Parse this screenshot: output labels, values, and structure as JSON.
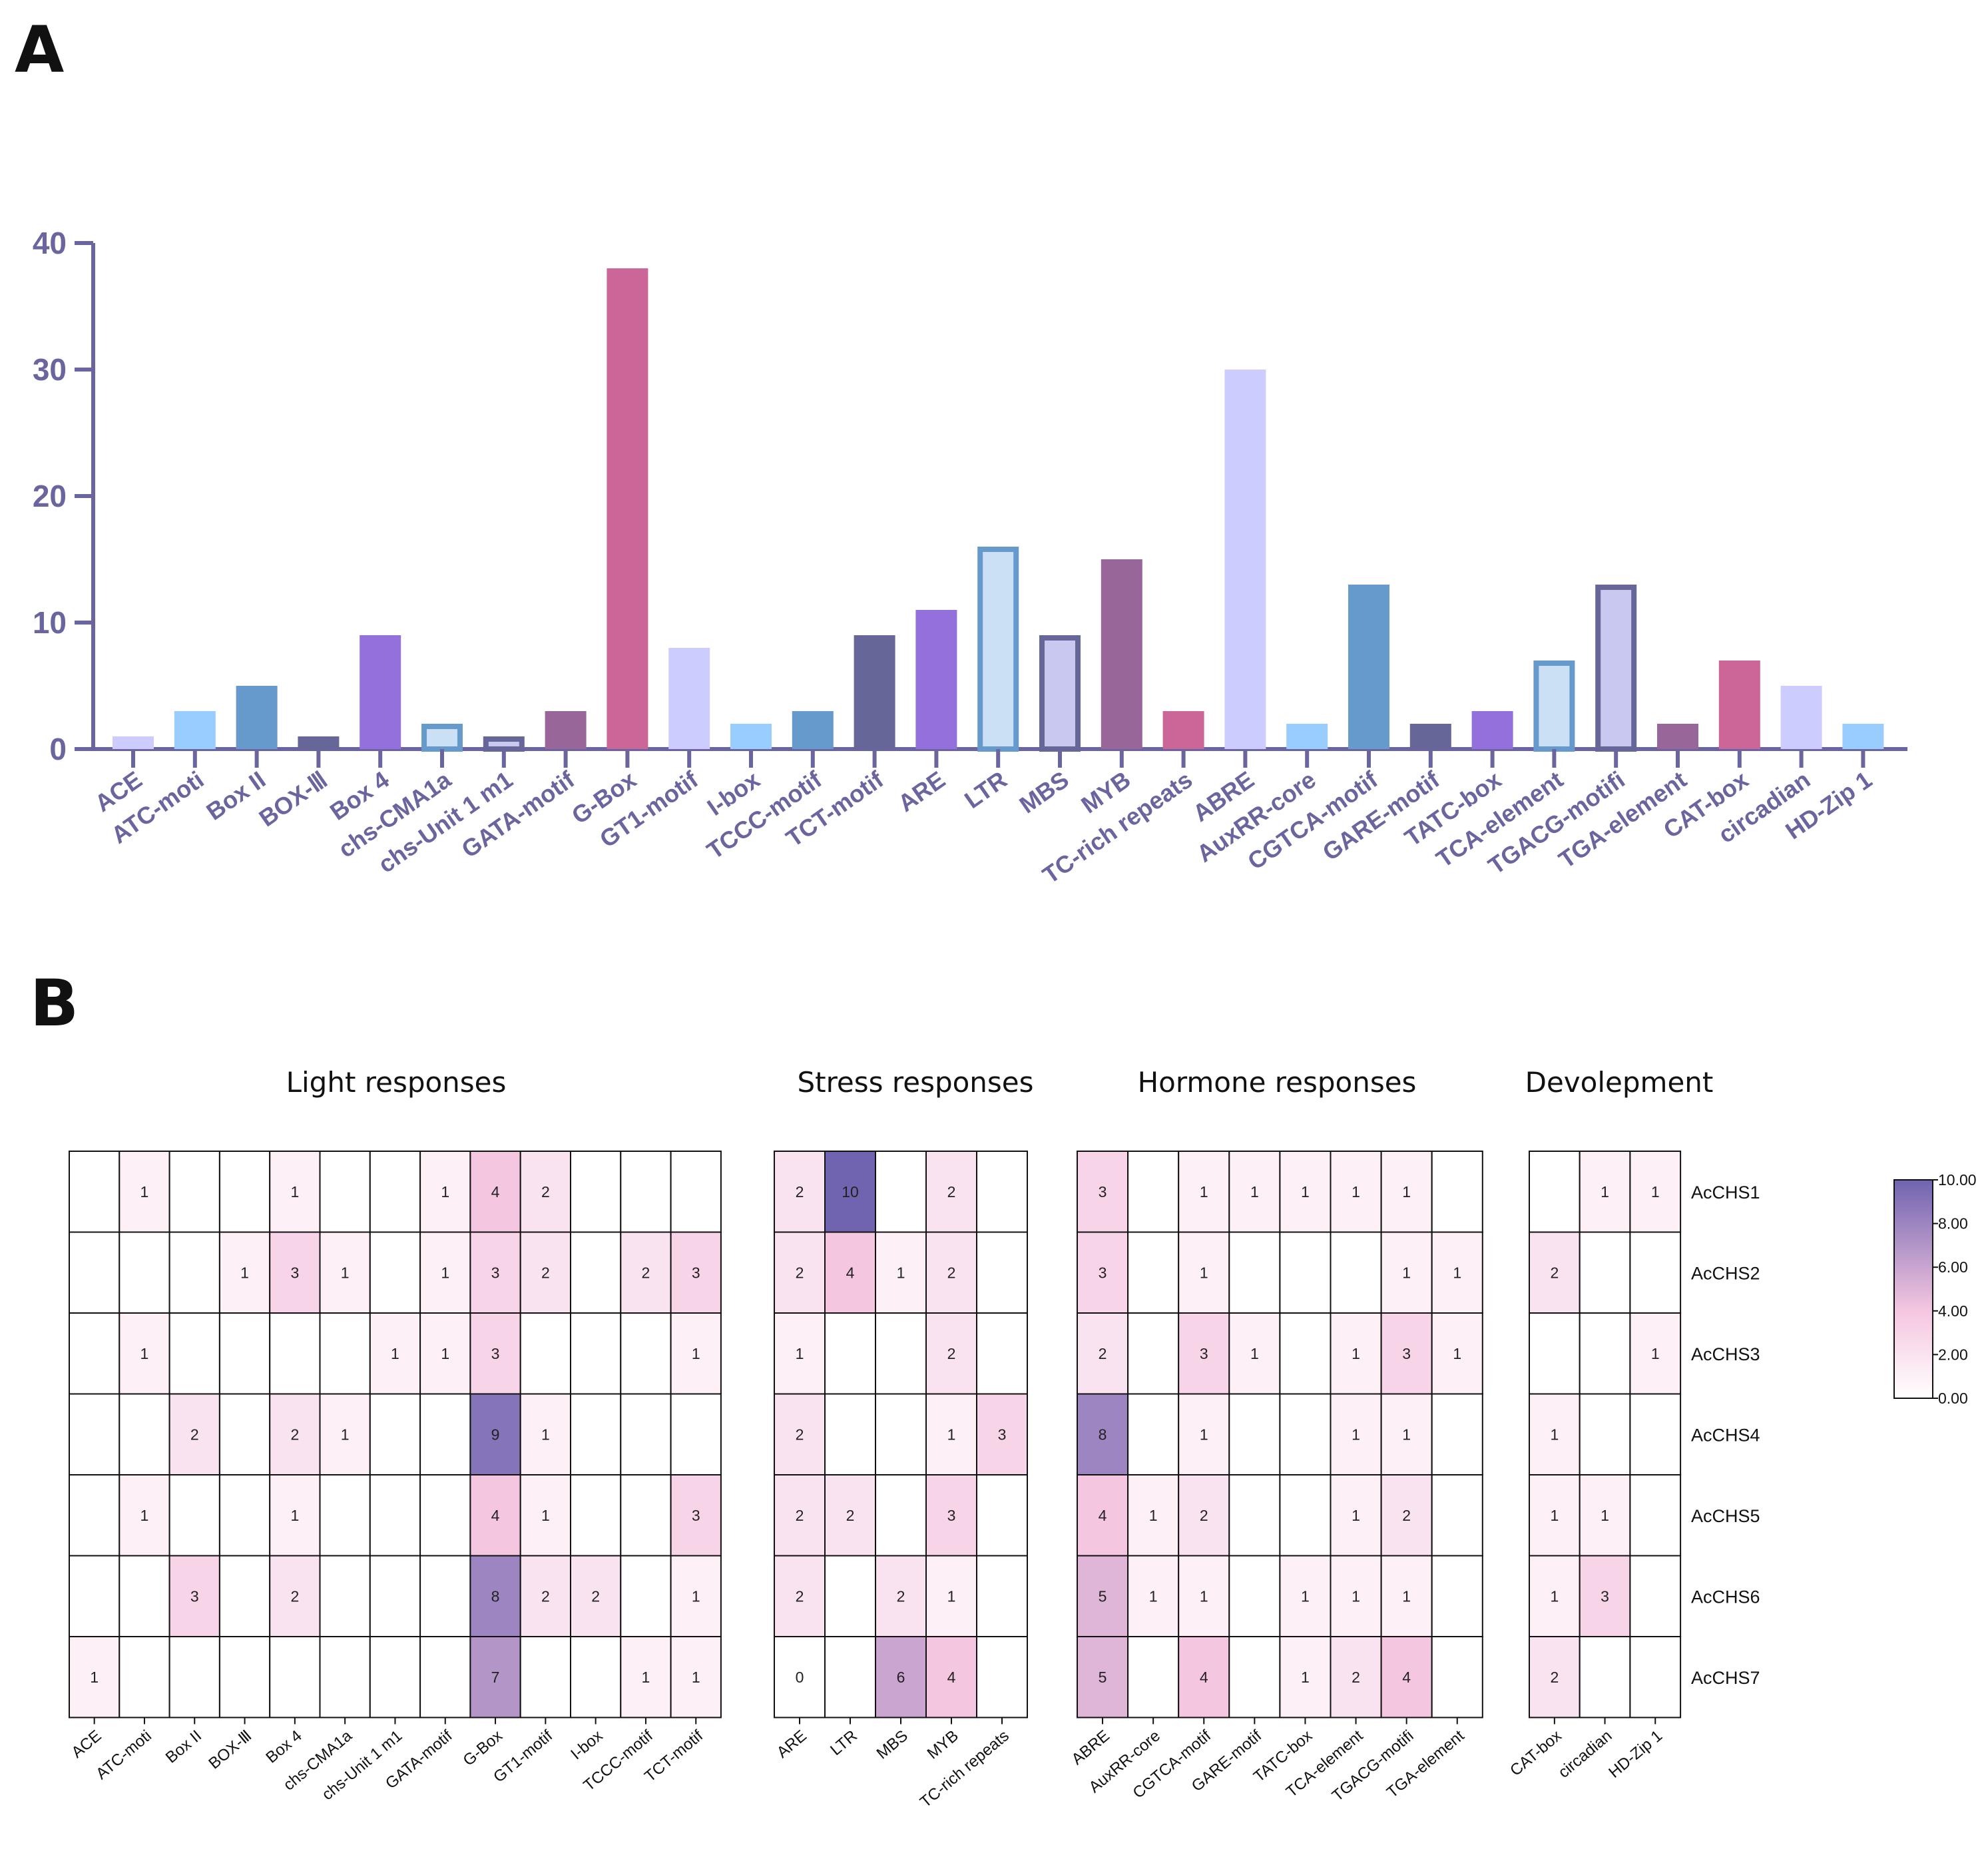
{
  "panels": {
    "a": "A",
    "b": "B"
  },
  "colors": {
    "axis": "#6A659E"
  },
  "chart_data": [
    {
      "type": "bar",
      "panel": "A",
      "title": "",
      "xlabel": "",
      "ylabel": "",
      "ylim": [
        0,
        40
      ],
      "yticks": [
        "0",
        "10",
        "20",
        "30",
        "40"
      ],
      "categories": [
        "ACE",
        "ATC-moti",
        "Box II",
        "BOX-Ⅲ",
        "Box 4",
        "chs-CMA1a",
        "chs-Unit 1 m1",
        "GATA-motif",
        "G-Box",
        "GT1-motif",
        "I-box",
        "TCCC-motif",
        "TCT-motif",
        "ARE",
        "LTR",
        "MBS",
        "MYB",
        "TC-rich repeats",
        "ABRE",
        "AuxRR-core",
        "CGTCA-motif",
        "GARE-motif",
        "TATC-box",
        "TCA-element",
        "TGACG-motifi",
        "TGA-element",
        "CAT-box",
        "circadian",
        "HD-Zip 1"
      ],
      "values": [
        1,
        3,
        5,
        1,
        9,
        2,
        1,
        3,
        38,
        8,
        2,
        3,
        9,
        11,
        16,
        9,
        15,
        3,
        30,
        2,
        13,
        2,
        3,
        7,
        13,
        2,
        7,
        5,
        2
      ],
      "bar_colors": [
        "#CCCCFF",
        "#99CCFF",
        "#6699CC",
        "#666699",
        "#9370DB",
        "#CCE0F5",
        "#C8C8F0",
        "#996699",
        "#CC6699",
        "#CCCCFF",
        "#99CCFF",
        "#6699CC",
        "#666699",
        "#9370DB",
        "#CCE0F5",
        "#C8C8F0",
        "#996699",
        "#CC6699",
        "#CCCCFF",
        "#99CCFF",
        "#6699CC",
        "#666699",
        "#9370DB",
        "#CCE0F5",
        "#C8C8F0",
        "#996699",
        "#CC6699",
        "#CCCCFF",
        "#99CCFF"
      ],
      "bar_outlines": [
        "",
        "",
        "",
        "",
        "",
        "#6699CC",
        "#666699",
        "",
        "",
        "",
        "",
        "",
        "",
        "",
        "#6699CC",
        "#666699",
        "",
        "",
        "",
        "",
        "",
        "",
        "",
        "#6699CC",
        "#666699",
        "",
        "",
        "",
        ""
      ]
    },
    {
      "type": "heatmap",
      "panel": "B",
      "rows": [
        "AcCHS1",
        "AcCHS2",
        "AcCHS3",
        "AcCHS4",
        "AcCHS5",
        "AcCHS6",
        "AcCHS7"
      ],
      "color_scale": {
        "min": 0,
        "max": 10,
        "colors": [
          "#FFFFFF",
          "#F5C6E0",
          "#7064B0"
        ],
        "ticks": [
          "10.00",
          "8.00",
          "6.00",
          "4.00",
          "2.00",
          "0.00"
        ]
      },
      "groups": [
        {
          "title": "Light responses",
          "columns": [
            "ACE",
            "ATC-moti",
            "Box II",
            "BOX-Ⅲ",
            "Box 4",
            "chs-CMA1a",
            "chs-Unit 1 m1",
            "GATA-motif",
            "G-Box",
            "GT1-motif",
            "I-box",
            "TCCC-motif",
            "TCT-motif"
          ],
          "values": [
            [
              null,
              1,
              null,
              null,
              1,
              null,
              null,
              1,
              4,
              2,
              null,
              null,
              null
            ],
            [
              null,
              null,
              null,
              1,
              3,
              1,
              null,
              1,
              3,
              2,
              null,
              2,
              3
            ],
            [
              null,
              1,
              null,
              null,
              null,
              null,
              1,
              1,
              3,
              null,
              null,
              null,
              1
            ],
            [
              null,
              null,
              2,
              null,
              2,
              1,
              null,
              null,
              9,
              1,
              null,
              null,
              null
            ],
            [
              null,
              1,
              null,
              null,
              1,
              null,
              null,
              null,
              4,
              1,
              null,
              null,
              3
            ],
            [
              null,
              null,
              3,
              null,
              2,
              null,
              null,
              null,
              8,
              2,
              2,
              null,
              1
            ],
            [
              1,
              null,
              null,
              null,
              null,
              null,
              null,
              null,
              7,
              null,
              null,
              1,
              1
            ]
          ]
        },
        {
          "title": "Stress responses",
          "columns": [
            "ARE",
            "LTR",
            "MBS",
            "MYB",
            "TC-rich repeats"
          ],
          "values": [
            [
              2,
              10,
              null,
              2,
              null
            ],
            [
              2,
              4,
              1,
              2,
              null
            ],
            [
              1,
              null,
              null,
              2,
              null
            ],
            [
              2,
              null,
              null,
              1,
              3
            ],
            [
              2,
              2,
              null,
              3,
              null
            ],
            [
              2,
              null,
              2,
              1,
              null
            ],
            [
              0,
              null,
              6,
              4,
              null
            ]
          ]
        },
        {
          "title": "Hormone responses",
          "columns": [
            "ABRE",
            "AuxRR-core",
            "CGTCA-motif",
            "GARE-motif",
            "TATC-box",
            "TCA-element",
            "TGACG-motifi",
            "TGA-element"
          ],
          "values": [
            [
              3,
              null,
              1,
              1,
              1,
              1,
              1,
              null
            ],
            [
              3,
              null,
              1,
              null,
              null,
              null,
              1,
              1
            ],
            [
              2,
              null,
              3,
              1,
              null,
              1,
              3,
              1
            ],
            [
              8,
              null,
              1,
              null,
              null,
              1,
              1,
              null
            ],
            [
              4,
              1,
              2,
              null,
              null,
              1,
              2,
              null
            ],
            [
              5,
              1,
              1,
              null,
              1,
              1,
              1,
              null
            ],
            [
              5,
              null,
              4,
              null,
              1,
              2,
              4,
              null
            ]
          ]
        },
        {
          "title": "Devolepment",
          "columns": [
            "CAT-box",
            "circadian",
            "HD-Zip 1"
          ],
          "values": [
            [
              null,
              1,
              1
            ],
            [
              2,
              null,
              null
            ],
            [
              null,
              null,
              1
            ],
            [
              1,
              null,
              null
            ],
            [
              1,
              1,
              null
            ],
            [
              1,
              3,
              null
            ],
            [
              2,
              null,
              null
            ]
          ]
        }
      ]
    }
  ]
}
